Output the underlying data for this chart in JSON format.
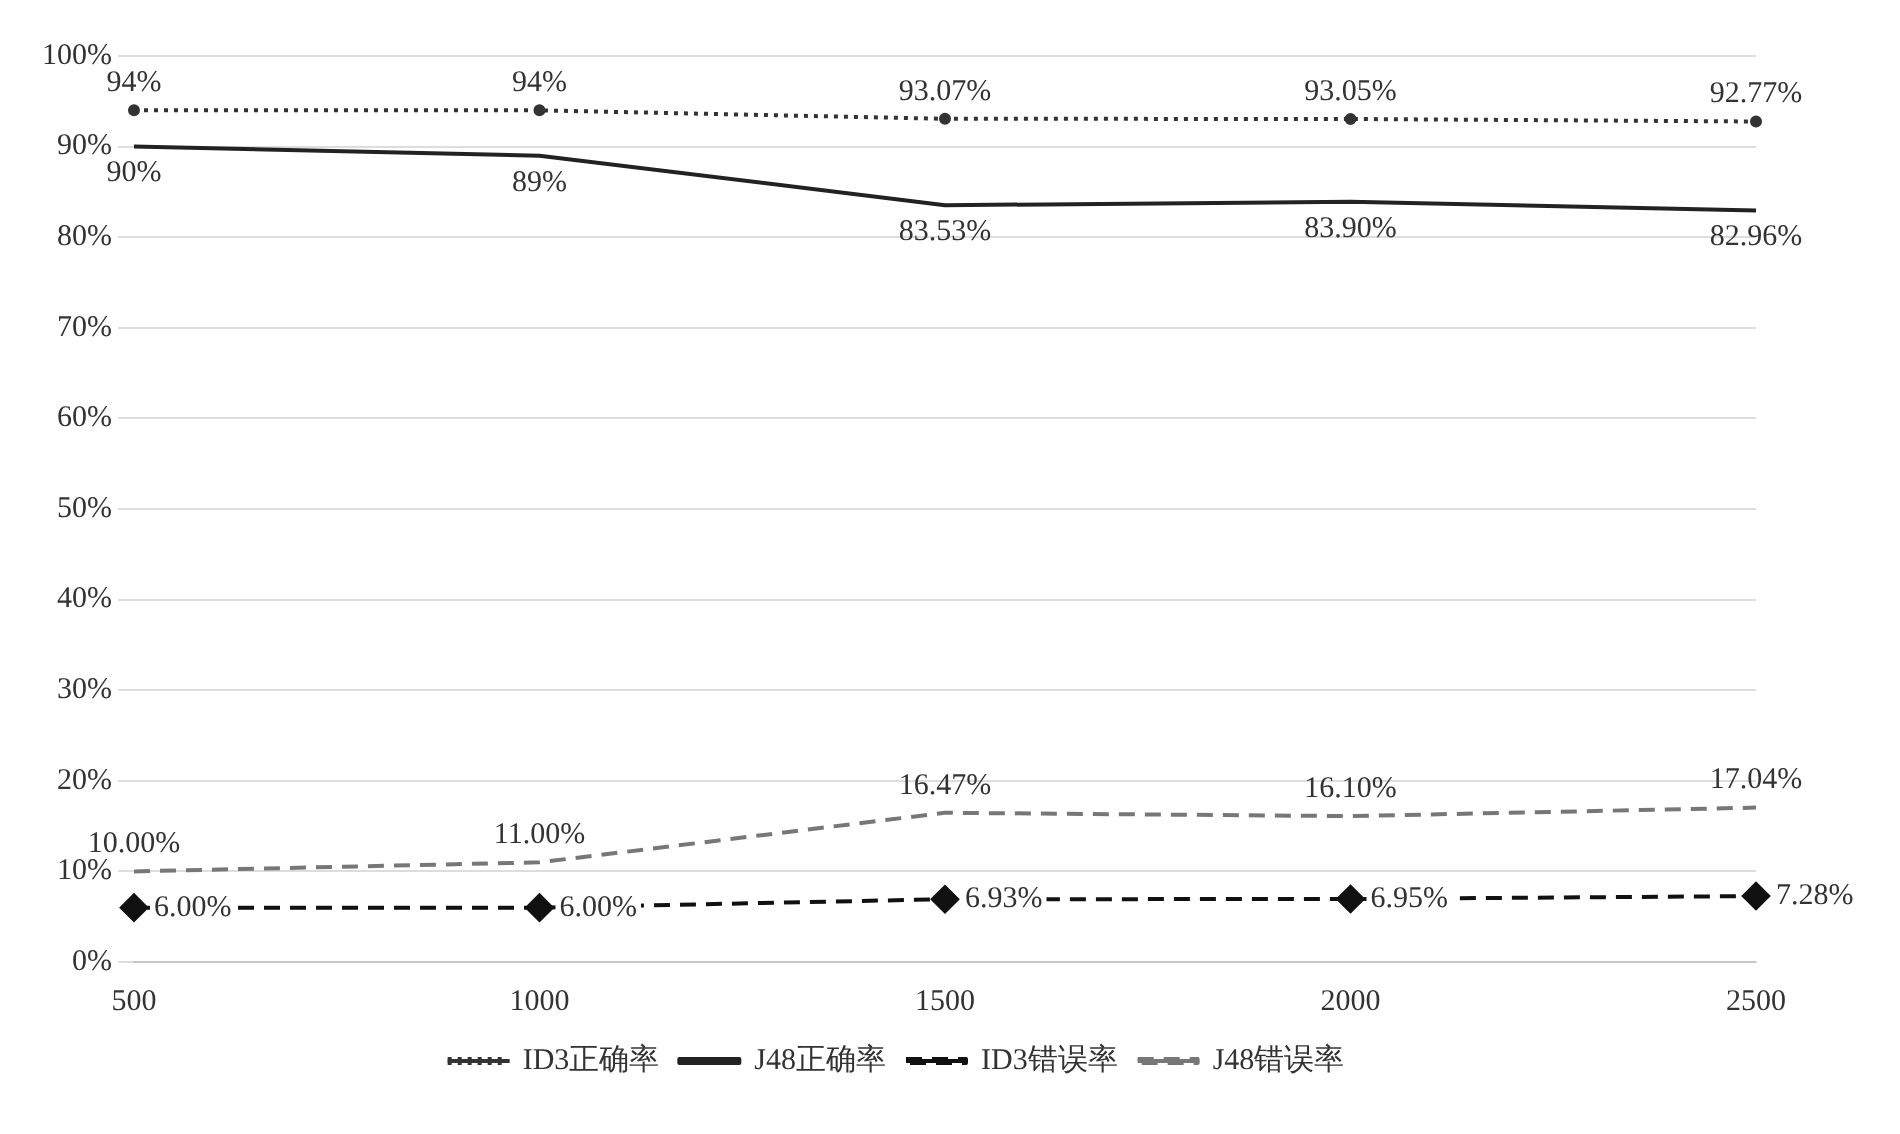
{
  "chart_data": {
    "type": "line",
    "categories": [
      "500",
      "1000",
      "1500",
      "2000",
      "2500"
    ],
    "series": [
      {
        "name": "ID3正确率",
        "color": "#333333",
        "line_style": "dotted",
        "marker": "circle",
        "values": [
          94,
          94,
          93.07,
          93.05,
          92.77
        ],
        "value_labels": [
          "94%",
          "94%",
          "93.07%",
          "93.05%",
          "92.77%"
        ]
      },
      {
        "name": "J48正确率",
        "color": "#222222",
        "line_style": "solid",
        "marker": "none",
        "values": [
          90,
          89,
          83.53,
          83.9,
          82.96
        ],
        "value_labels": [
          "90%",
          "89%",
          "83.53%",
          "83.90%",
          "82.96%"
        ]
      },
      {
        "name": "ID3错误率",
        "color": "#111111",
        "line_style": "dashed",
        "marker": "diamond",
        "values": [
          6,
          6,
          6.93,
          6.95,
          7.28
        ],
        "value_labels": [
          "6.00%",
          "6.00%",
          "6.93%",
          "6.95%",
          "7.28%"
        ]
      },
      {
        "name": "J48错误率",
        "color": "#777777",
        "line_style": "dashed",
        "marker": "none",
        "values": [
          10,
          11,
          16.47,
          16.1,
          17.04
        ],
        "value_labels": [
          "10.00%",
          "11.00%",
          "16.47%",
          "16.10%",
          "17.04%"
        ]
      }
    ],
    "ylim": [
      0,
      100
    ],
    "yticks": [
      {
        "value": 0,
        "label": "0%"
      },
      {
        "value": 10,
        "label": "10%"
      },
      {
        "value": 20,
        "label": "20%"
      },
      {
        "value": 30,
        "label": "30%"
      },
      {
        "value": 40,
        "label": "40%"
      },
      {
        "value": 50,
        "label": "50%"
      },
      {
        "value": 60,
        "label": "60%"
      },
      {
        "value": 70,
        "label": "70%"
      },
      {
        "value": 80,
        "label": "80%"
      },
      {
        "value": 90,
        "label": "90%"
      },
      {
        "value": 100,
        "label": "100%"
      }
    ],
    "grid": "y",
    "legend": "bottom"
  }
}
